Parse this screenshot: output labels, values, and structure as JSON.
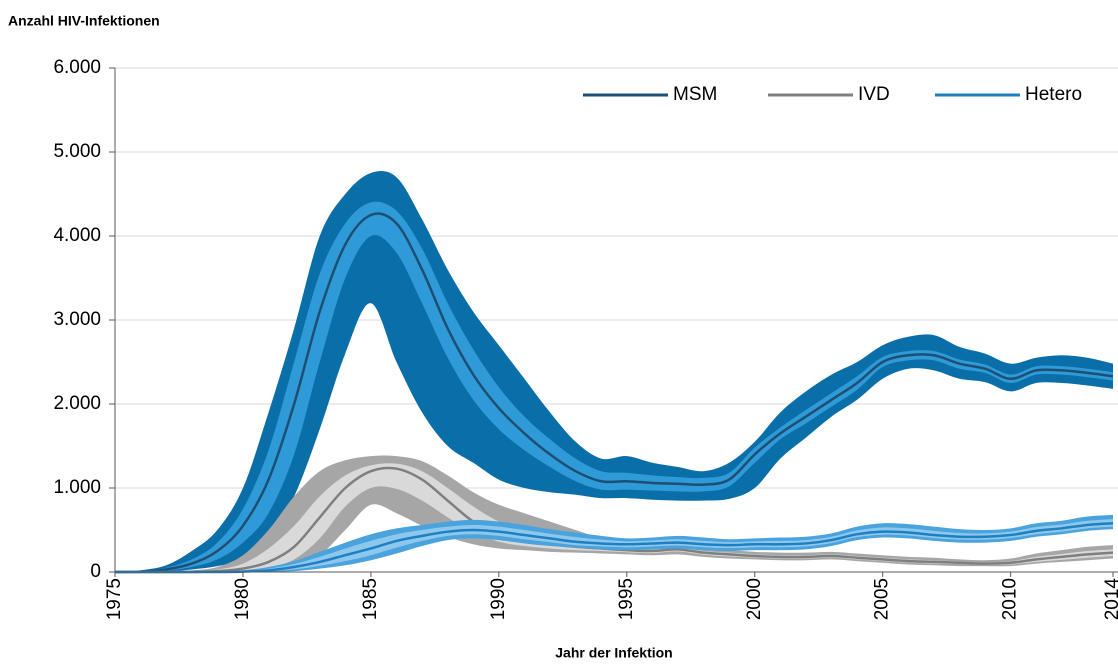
{
  "chart_data": {
    "type": "band-line",
    "y_label": "Anzahl HIV-Infektionen",
    "x_label": "Jahr der Infektion",
    "x": [
      1975,
      1976,
      1977,
      1978,
      1979,
      1980,
      1981,
      1982,
      1983,
      1984,
      1985,
      1986,
      1987,
      1988,
      1989,
      1990,
      1991,
      1992,
      1993,
      1994,
      1995,
      1996,
      1997,
      1998,
      1999,
      2000,
      2001,
      2002,
      2003,
      2004,
      2005,
      2006,
      2007,
      2008,
      2009,
      2010,
      2011,
      2012,
      2013,
      2014
    ],
    "xlim": [
      1975,
      2014
    ],
    "xticks": [
      1975,
      1980,
      1985,
      1990,
      1995,
      2000,
      2005,
      2010,
      2014
    ],
    "ylim": [
      0,
      6000
    ],
    "yticks": [
      0,
      {
        "value": 1000,
        "label": "1.000"
      },
      {
        "value": 2000,
        "label": "2.000"
      },
      {
        "value": 3000,
        "label": "3.000"
      },
      {
        "value": 4000,
        "label": "4.000"
      },
      {
        "value": 5000,
        "label": "5.000"
      },
      {
        "value": 6000,
        "label": "6.000"
      }
    ],
    "grid": true,
    "legend": "top-right",
    "series": [
      {
        "name": "MSM",
        "color": "#1d4f74",
        "band_color": "#0a6fa8",
        "inner_color": "#2f9ad8",
        "values": [
          0,
          5,
          30,
          100,
          250,
          550,
          1100,
          2000,
          3100,
          3900,
          4250,
          4150,
          3600,
          2900,
          2350,
          1950,
          1650,
          1400,
          1200,
          1080,
          1080,
          1060,
          1050,
          1040,
          1100,
          1400,
          1650,
          1850,
          2050,
          2250,
          2500,
          2580,
          2580,
          2480,
          2420,
          2300,
          2400,
          2400,
          2370,
          2330
        ],
        "lower": [
          0,
          0,
          5,
          30,
          70,
          150,
          400,
          900,
          1700,
          2600,
          3200,
          2500,
          1900,
          1500,
          1300,
          1100,
          1000,
          950,
          920,
          880,
          880,
          860,
          850,
          850,
          870,
          1000,
          1350,
          1600,
          1850,
          2050,
          2300,
          2420,
          2400,
          2300,
          2260,
          2150,
          2250,
          2250,
          2220,
          2180
        ],
        "upper": [
          0,
          20,
          80,
          250,
          500,
          1000,
          1900,
          2900,
          4000,
          4500,
          4750,
          4700,
          4200,
          3600,
          3100,
          2700,
          2300,
          1900,
          1550,
          1350,
          1380,
          1300,
          1250,
          1200,
          1300,
          1550,
          1900,
          2150,
          2350,
          2500,
          2700,
          2800,
          2820,
          2680,
          2600,
          2480,
          2550,
          2580,
          2550,
          2480
        ],
        "inner_lower": [
          0,
          2,
          15,
          60,
          150,
          350,
          700,
          1400,
          2500,
          3500,
          4000,
          3800,
          3200,
          2550,
          2050,
          1700,
          1450,
          1250,
          1080,
          980,
          980,
          970,
          960,
          960,
          1020,
          1300,
          1580,
          1770,
          1970,
          2170,
          2440,
          2520,
          2520,
          2420,
          2370,
          2250,
          2350,
          2350,
          2320,
          2280
        ],
        "inner_upper": [
          0,
          10,
          50,
          150,
          350,
          750,
          1450,
          2500,
          3550,
          4150,
          4400,
          4300,
          3850,
          3200,
          2650,
          2200,
          1850,
          1580,
          1350,
          1200,
          1180,
          1150,
          1130,
          1120,
          1180,
          1480,
          1720,
          1930,
          2130,
          2330,
          2560,
          2630,
          2630,
          2530,
          2470,
          2350,
          2450,
          2450,
          2420,
          2380
        ]
      },
      {
        "name": "IVD",
        "color": "#7f7f7f",
        "band_color": "#a6a6a6",
        "inner_color": "#d9d9d9",
        "values": [
          0,
          0,
          0,
          0,
          10,
          40,
          120,
          300,
          650,
          1000,
          1200,
          1230,
          1100,
          850,
          600,
          450,
          380,
          330,
          300,
          280,
          260,
          250,
          270,
          230,
          210,
          190,
          180,
          180,
          190,
          170,
          150,
          130,
          120,
          110,
          100,
          110,
          150,
          180,
          210,
          230
        ],
        "lower": [
          0,
          0,
          0,
          0,
          0,
          5,
          20,
          80,
          200,
          500,
          800,
          700,
          550,
          420,
          330,
          280,
          260,
          240,
          230,
          220,
          210,
          200,
          210,
          180,
          160,
          150,
          140,
          140,
          150,
          130,
          110,
          90,
          80,
          70,
          70,
          70,
          100,
          120,
          140,
          160
        ],
        "upper": [
          0,
          0,
          5,
          20,
          60,
          200,
          500,
          900,
          1200,
          1330,
          1380,
          1380,
          1320,
          1150,
          950,
          800,
          700,
          600,
          500,
          400,
          330,
          310,
          320,
          280,
          260,
          240,
          230,
          230,
          240,
          220,
          200,
          180,
          170,
          150,
          140,
          160,
          220,
          260,
          300,
          320
        ],
        "inner_lower": [
          0,
          0,
          0,
          0,
          2,
          15,
          50,
          150,
          400,
          780,
          1000,
          990,
          850,
          650,
          470,
          360,
          310,
          280,
          260,
          250,
          235,
          225,
          245,
          205,
          185,
          170,
          160,
          160,
          170,
          150,
          130,
          110,
          100,
          95,
          85,
          90,
          120,
          145,
          170,
          190
        ],
        "inner_upper": [
          0,
          0,
          0,
          5,
          30,
          100,
          280,
          550,
          900,
          1150,
          1270,
          1290,
          1200,
          1000,
          780,
          600,
          500,
          430,
          380,
          320,
          290,
          280,
          290,
          250,
          230,
          210,
          200,
          200,
          210,
          190,
          170,
          150,
          140,
          125,
          115,
          130,
          180,
          215,
          250,
          270
        ]
      },
      {
        "name": "Hetero",
        "color": "#1f7fc1",
        "band_color": "#4aa3dc",
        "inner_color": "#8cc8ee",
        "values": [
          0,
          0,
          0,
          0,
          0,
          5,
          20,
          60,
          120,
          200,
          280,
          370,
          430,
          480,
          500,
          480,
          440,
          400,
          360,
          340,
          330,
          340,
          350,
          330,
          320,
          330,
          330,
          340,
          380,
          450,
          480,
          470,
          440,
          420,
          420,
          440,
          490,
          520,
          560,
          580
        ],
        "lower": [
          0,
          0,
          0,
          0,
          0,
          0,
          2,
          10,
          40,
          80,
          140,
          220,
          310,
          380,
          400,
          380,
          340,
          310,
          290,
          270,
          260,
          270,
          280,
          260,
          250,
          260,
          260,
          270,
          310,
          380,
          410,
          400,
          370,
          350,
          350,
          370,
          420,
          450,
          490,
          510
        ],
        "upper": [
          0,
          0,
          0,
          2,
          8,
          20,
          60,
          130,
          240,
          350,
          450,
          520,
          560,
          600,
          620,
          600,
          560,
          510,
          470,
          430,
          400,
          410,
          430,
          410,
          390,
          400,
          410,
          420,
          460,
          540,
          580,
          570,
          540,
          510,
          500,
          520,
          580,
          610,
          660,
          680
        ],
        "inner_lower": [
          0,
          0,
          0,
          0,
          0,
          2,
          8,
          30,
          75,
          130,
          200,
          290,
          370,
          430,
          450,
          430,
          390,
          355,
          320,
          305,
          295,
          305,
          315,
          295,
          285,
          295,
          295,
          305,
          345,
          415,
          445,
          435,
          405,
          385,
          385,
          405,
          450,
          480,
          520,
          540
        ],
        "inner_upper": [
          0,
          0,
          0,
          0,
          2,
          10,
          40,
          95,
          180,
          280,
          370,
          450,
          500,
          540,
          560,
          540,
          500,
          455,
          415,
          385,
          365,
          375,
          390,
          370,
          355,
          365,
          370,
          380,
          420,
          495,
          530,
          520,
          490,
          465,
          460,
          480,
          535,
          565,
          610,
          630
        ]
      }
    ]
  }
}
